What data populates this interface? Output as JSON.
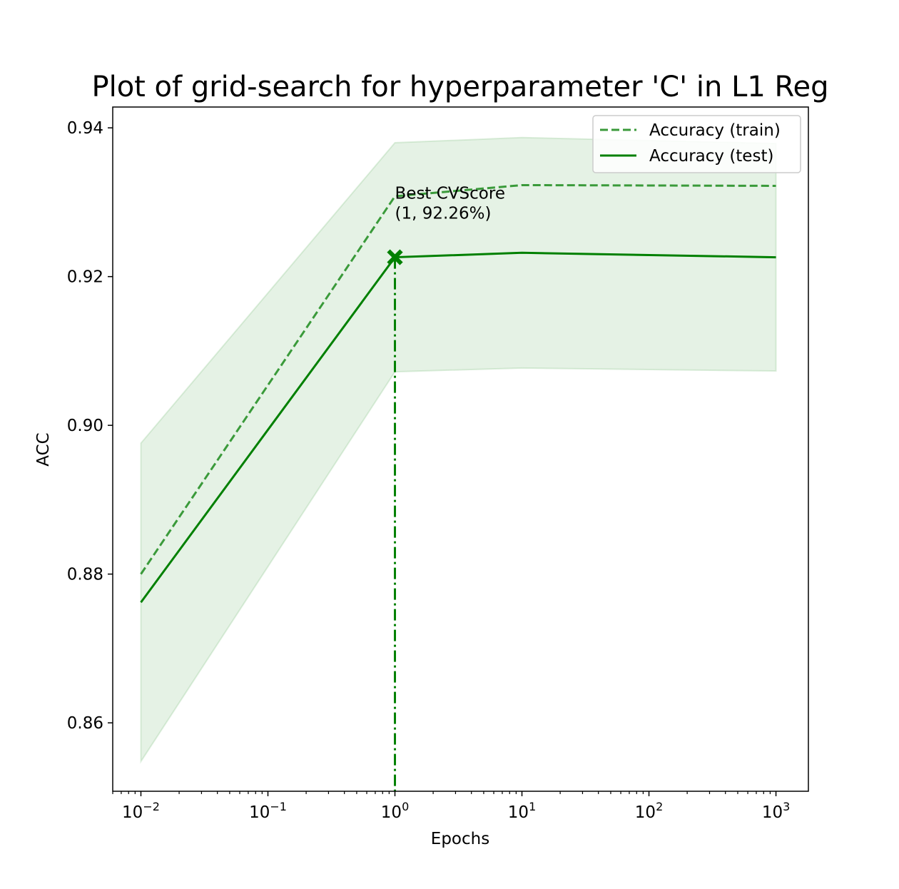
{
  "chart_data": {
    "type": "line",
    "title": "Plot of grid-search for hyperparameter 'C' in L1 Reg",
    "xlabel": "Epochs",
    "ylabel": "ACC",
    "xscale": "log",
    "xlim": [
      0.006,
      1800
    ],
    "ylim": [
      0.8508,
      0.9428
    ],
    "x": [
      0.01,
      1,
      10,
      1000
    ],
    "x_ticks": [
      {
        "value": 0.01,
        "base": "10",
        "exp": "−2"
      },
      {
        "value": 0.1,
        "base": "10",
        "exp": "−1"
      },
      {
        "value": 1,
        "base": "10",
        "exp": "0"
      },
      {
        "value": 10,
        "base": "10",
        "exp": "1"
      },
      {
        "value": 100,
        "base": "10",
        "exp": "2"
      },
      {
        "value": 1000,
        "base": "10",
        "exp": "3"
      }
    ],
    "y_ticks": [
      {
        "value": 0.86,
        "label": "0.86"
      },
      {
        "value": 0.88,
        "label": "0.88"
      },
      {
        "value": 0.9,
        "label": "0.90"
      },
      {
        "value": 0.92,
        "label": "0.92"
      },
      {
        "value": 0.94,
        "label": "0.94"
      }
    ],
    "grid": false,
    "legend_position": "top-right",
    "series": [
      {
        "name": "Accuracy (train)",
        "style": "dashed",
        "color": "#3a9a3a",
        "values": [
          0.88,
          0.9308,
          0.9323,
          0.9322
        ]
      },
      {
        "name": "Accuracy (test)",
        "style": "solid",
        "color": "#008000",
        "values": [
          0.8762,
          0.9226,
          0.9232,
          0.9226
        ]
      }
    ],
    "band": {
      "color": "#008000",
      "lower": [
        0.8548,
        0.9072,
        0.9077,
        0.9073
      ],
      "upper": [
        0.8976,
        0.938,
        0.9387,
        0.9379
      ]
    },
    "best_point": {
      "x": 1,
      "y": 0.9226,
      "marker": "X",
      "color": "#008000"
    },
    "annotation": {
      "line1": "Best CVScore",
      "line2": "(1, 92.26%)",
      "x": 1,
      "y": 0.9278
    }
  }
}
